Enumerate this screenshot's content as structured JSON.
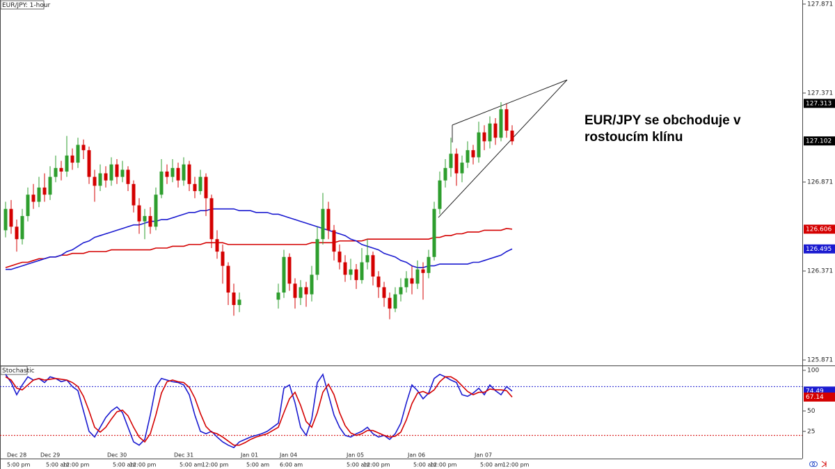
{
  "chart_data": [
    {
      "type": "candlestick",
      "title": "EUR/JPY: 1-hour",
      "annotation": "EUR/JPY se obchoduje v rostoucím klínu",
      "up_color": "#2e9e2e",
      "down_color": "#d40000",
      "open": [
        126.6,
        126.72,
        126.62,
        126.55,
        126.68,
        126.8,
        126.76,
        126.84,
        126.8,
        126.9,
        126.95,
        126.93,
        127.02,
        126.98,
        127.08,
        127.05,
        126.9,
        126.85,
        126.92,
        126.88,
        126.97,
        126.9,
        126.94,
        126.86,
        126.74,
        126.65,
        126.68,
        126.62,
        126.8,
        126.93,
        126.9,
        126.95,
        126.88,
        126.97,
        126.86,
        126.82,
        126.9,
        126.78,
        126.55,
        126.48,
        126.4,
        126.25,
        126.18,
        null,
        null,
        null,
        null,
        null,
        null,
        126.21,
        126.25,
        126.45,
        126.3,
        126.22,
        126.28,
        126.24,
        126.35,
        126.55,
        126.72,
        126.6,
        126.48,
        126.42,
        126.35,
        126.38,
        126.32,
        126.42,
        126.46,
        126.34,
        126.28,
        126.22,
        126.16,
        126.24,
        126.28,
        126.33,
        126.3,
        126.38,
        126.36,
        126.45,
        126.72,
        126.88,
        126.95,
        127.03,
        126.92,
        126.98,
        127.05,
        127.01,
        127.15,
        127.1,
        127.2,
        127.12,
        127.28,
        127.16
      ],
      "high": [
        126.76,
        126.77,
        126.66,
        126.72,
        126.84,
        126.86,
        126.9,
        126.92,
        126.96,
        127.02,
        126.99,
        127.13,
        127.06,
        127.12,
        127.11,
        127.07,
        126.94,
        126.97,
        126.96,
        127.01,
        127.0,
        126.99,
        126.96,
        126.88,
        126.78,
        126.72,
        126.73,
        126.84,
        127.0,
        126.97,
        127.0,
        126.98,
        127.01,
        126.99,
        126.9,
        126.94,
        126.92,
        126.8,
        126.6,
        126.52,
        126.42,
        126.3,
        126.25,
        null,
        null,
        null,
        null,
        null,
        null,
        126.3,
        126.49,
        126.47,
        126.33,
        126.32,
        126.31,
        126.4,
        126.62,
        126.81,
        126.76,
        126.63,
        126.52,
        126.46,
        126.44,
        126.41,
        126.5,
        126.55,
        126.48,
        126.37,
        126.31,
        126.25,
        126.28,
        126.33,
        126.37,
        126.4,
        126.43,
        126.42,
        126.49,
        126.76,
        126.93,
        127.0,
        127.12,
        127.06,
        127.02,
        127.1,
        127.08,
        127.21,
        127.19,
        127.24,
        127.23,
        127.32,
        127.31,
        127.19
      ],
      "low": [
        126.56,
        126.58,
        126.48,
        126.52,
        126.65,
        126.72,
        126.73,
        126.76,
        126.77,
        126.87,
        126.88,
        126.9,
        126.94,
        126.95,
        127.0,
        126.86,
        126.76,
        126.82,
        126.84,
        126.85,
        126.86,
        126.87,
        126.82,
        126.7,
        126.58,
        126.55,
        126.58,
        126.6,
        126.78,
        126.86,
        126.87,
        126.84,
        126.85,
        126.82,
        126.78,
        126.8,
        126.68,
        126.5,
        126.44,
        126.3,
        126.18,
        126.12,
        126.14,
        null,
        null,
        null,
        null,
        null,
        null,
        126.16,
        126.22,
        126.26,
        126.16,
        126.18,
        126.17,
        126.2,
        126.32,
        126.52,
        126.55,
        126.43,
        126.38,
        126.31,
        126.32,
        126.27,
        126.3,
        126.38,
        126.29,
        126.22,
        126.17,
        126.1,
        126.14,
        126.2,
        126.25,
        126.24,
        126.27,
        126.21,
        126.33,
        126.43,
        126.69,
        126.84,
        126.9,
        126.85,
        126.87,
        126.95,
        126.97,
        126.98,
        127.05,
        127.06,
        127.08,
        127.1,
        127.12,
        127.08
      ],
      "close": [
        126.72,
        126.62,
        126.55,
        126.68,
        126.8,
        126.76,
        126.84,
        126.8,
        126.9,
        126.95,
        126.93,
        127.02,
        126.98,
        127.08,
        127.05,
        126.9,
        126.85,
        126.92,
        126.88,
        126.97,
        126.9,
        126.94,
        126.86,
        126.74,
        126.65,
        126.68,
        126.62,
        126.8,
        126.93,
        126.9,
        126.95,
        126.88,
        126.97,
        126.86,
        126.82,
        126.9,
        126.78,
        126.55,
        126.48,
        126.4,
        126.25,
        126.18,
        126.21,
        null,
        null,
        null,
        null,
        null,
        null,
        126.25,
        126.45,
        126.3,
        126.22,
        126.28,
        126.24,
        126.35,
        126.55,
        126.72,
        126.6,
        126.48,
        126.42,
        126.35,
        126.38,
        126.32,
        126.42,
        126.46,
        126.34,
        126.28,
        126.22,
        126.16,
        126.24,
        126.28,
        126.33,
        126.3,
        126.38,
        126.36,
        126.45,
        126.72,
        126.88,
        126.95,
        127.03,
        126.92,
        126.98,
        127.05,
        127.01,
        127.15,
        127.1,
        127.2,
        127.12,
        127.28,
        127.16,
        127.1
      ],
      "series": [
        {
          "color": "#d40000",
          "values": [
            126.39,
            126.4,
            126.41,
            126.42,
            126.42,
            126.43,
            126.44,
            126.44,
            126.45,
            126.45,
            126.46,
            126.46,
            126.47,
            126.47,
            126.47,
            126.48,
            126.48,
            126.48,
            126.48,
            126.49,
            126.49,
            126.49,
            126.49,
            126.49,
            126.49,
            126.49,
            126.49,
            126.5,
            126.5,
            126.5,
            126.51,
            126.51,
            126.51,
            126.52,
            126.52,
            126.52,
            126.53,
            126.53,
            126.53,
            126.53,
            126.52,
            126.52,
            126.52,
            126.52,
            126.52,
            126.52,
            126.52,
            126.52,
            126.52,
            126.52,
            126.52,
            126.52,
            126.52,
            126.52,
            126.52,
            126.53,
            126.53,
            126.53,
            126.53,
            126.53,
            126.54,
            126.54,
            126.54,
            126.54,
            126.54,
            126.55,
            126.55,
            126.55,
            126.55,
            126.55,
            126.55,
            126.55,
            126.55,
            126.55,
            126.55,
            126.55,
            126.55,
            126.56,
            126.56,
            126.57,
            126.57,
            126.58,
            126.58,
            126.59,
            126.59,
            126.59,
            126.6,
            126.6,
            126.6,
            126.6,
            126.61,
            126.606
          ]
        },
        {
          "color": "#1a1ad0",
          "values": [
            126.38,
            126.38,
            126.39,
            126.4,
            126.41,
            126.42,
            126.43,
            126.44,
            126.45,
            126.45,
            126.46,
            126.48,
            126.49,
            126.51,
            126.53,
            126.54,
            126.56,
            126.57,
            126.58,
            126.59,
            126.6,
            126.61,
            126.62,
            126.63,
            126.63,
            126.64,
            126.65,
            126.65,
            126.66,
            126.66,
            126.67,
            126.68,
            126.69,
            126.7,
            126.7,
            126.71,
            126.71,
            126.72,
            126.72,
            126.72,
            126.72,
            126.72,
            126.71,
            126.71,
            126.71,
            126.7,
            126.7,
            126.7,
            126.69,
            126.69,
            126.68,
            126.67,
            126.66,
            126.65,
            126.64,
            126.63,
            126.62,
            126.61,
            126.6,
            126.59,
            126.58,
            126.57,
            126.55,
            126.54,
            126.52,
            126.51,
            126.5,
            126.49,
            126.47,
            126.46,
            126.45,
            126.43,
            126.42,
            126.4,
            126.39,
            126.39,
            126.4,
            126.4,
            126.41,
            126.41,
            126.41,
            126.41,
            126.41,
            126.41,
            126.42,
            126.42,
            126.43,
            126.44,
            126.45,
            126.46,
            126.48,
            126.495
          ]
        }
      ],
      "price_tags": [
        {
          "value": 127.313,
          "color": "#000000"
        },
        {
          "value": 127.102,
          "color": "#000000"
        },
        {
          "value": 126.606,
          "color": "#d40000"
        },
        {
          "value": 126.495,
          "color": "#1a1ad0"
        }
      ],
      "ylim": [
        125.844,
        127.894
      ],
      "yticks": [
        125.871,
        126.371,
        126.871,
        127.371,
        127.871
      ],
      "grid": false
    },
    {
      "type": "line",
      "title": "Stochastic",
      "date_labels": [
        null,
        "Dec 28",
        null,
        null,
        null,
        null,
        null,
        "Dec 29",
        null,
        null,
        null,
        null,
        null,
        null,
        null,
        null,
        null,
        null,
        null,
        "Dec 30",
        null,
        null,
        null,
        null,
        null,
        null,
        null,
        null,
        null,
        null,
        null,
        "Dec 31",
        null,
        null,
        null,
        null,
        null,
        null,
        null,
        null,
        null,
        null,
        null,
        "Jan 01",
        null,
        null,
        null,
        null,
        null,
        null,
        "Jan 04",
        null,
        null,
        null,
        null,
        null,
        null,
        null,
        null,
        null,
        null,
        null,
        "Jan 05",
        null,
        null,
        null,
        null,
        null,
        null,
        null,
        null,
        null,
        null,
        "Jan 06",
        null,
        null,
        null,
        null,
        null,
        null,
        null,
        null,
        null,
        null,
        null,
        "Jan 07",
        null,
        null,
        null,
        null,
        null,
        null
      ],
      "categories": [
        null,
        "5:00 pm",
        null,
        null,
        null,
        null,
        null,
        null,
        "5:00 am",
        null,
        null,
        "12:00 pm",
        null,
        null,
        null,
        null,
        null,
        null,
        null,
        null,
        "5:00 am",
        null,
        null,
        "12:00 pm",
        null,
        null,
        null,
        null,
        null,
        null,
        null,
        null,
        "5:00 am",
        null,
        null,
        null,
        "12:00 pm",
        null,
        null,
        null,
        null,
        null,
        null,
        null,
        "5:00 am",
        null,
        null,
        null,
        null,
        null,
        "6:00 am",
        null,
        null,
        null,
        null,
        null,
        null,
        null,
        null,
        null,
        null,
        null,
        "5:00 am",
        null,
        null,
        "12:00 pm",
        null,
        null,
        null,
        null,
        null,
        null,
        null,
        null,
        "5:00 am",
        null,
        null,
        "12:00 pm",
        null,
        null,
        null,
        null,
        null,
        null,
        null,
        null,
        "5:00 am",
        null,
        null,
        null,
        "12:00 pm",
        null
      ],
      "series": [
        {
          "color": "#1a1ad0",
          "values": [
            95,
            85,
            70,
            82,
            92,
            88,
            90,
            85,
            92,
            90,
            86,
            88,
            80,
            75,
            50,
            25,
            18,
            30,
            42,
            50,
            55,
            48,
            30,
            12,
            8,
            15,
            45,
            80,
            90,
            88,
            86,
            85,
            82,
            70,
            45,
            25,
            22,
            25,
            18,
            12,
            8,
            5,
            12,
            15,
            18,
            20,
            22,
            25,
            30,
            35,
            78,
            82,
            60,
            30,
            20,
            40,
            85,
            95,
            70,
            45,
            30,
            20,
            18,
            22,
            25,
            30,
            22,
            18,
            20,
            15,
            22,
            35,
            60,
            82,
            75,
            65,
            72,
            90,
            95,
            92,
            88,
            85,
            70,
            68,
            72,
            78,
            70,
            82,
            75,
            70,
            80,
            74.49
          ]
        },
        {
          "color": "#d40000",
          "values": [
            92,
            88,
            78,
            76,
            82,
            88,
            90,
            88,
            89,
            90,
            89,
            88,
            85,
            80,
            68,
            50,
            30,
            24,
            30,
            40,
            49,
            51,
            44,
            30,
            18,
            12,
            22,
            45,
            72,
            86,
            88,
            86,
            85,
            79,
            66,
            47,
            31,
            24,
            22,
            18,
            13,
            8,
            8,
            11,
            15,
            18,
            20,
            22,
            26,
            30,
            48,
            65,
            73,
            57,
            37,
            30,
            48,
            73,
            83,
            70,
            48,
            32,
            23,
            20,
            22,
            26,
            26,
            23,
            20,
            18,
            19,
            24,
            39,
            59,
            72,
            74,
            71,
            76,
            86,
            92,
            92,
            88,
            81,
            74,
            70,
            73,
            73,
            77,
            76,
            76,
            75,
            67.14
          ]
        }
      ],
      "levels": [
        {
          "value": 80,
          "color": "#1a1ad0"
        },
        {
          "value": 20,
          "color": "#d40000"
        }
      ],
      "price_tags": [
        {
          "value": 74.49,
          "color": "#1a1ad0"
        },
        {
          "value": 67.14,
          "color": "#d40000"
        }
      ],
      "ylim": [
        -8.5,
        105.1
      ],
      "yticks": [
        25,
        50,
        100
      ]
    }
  ]
}
